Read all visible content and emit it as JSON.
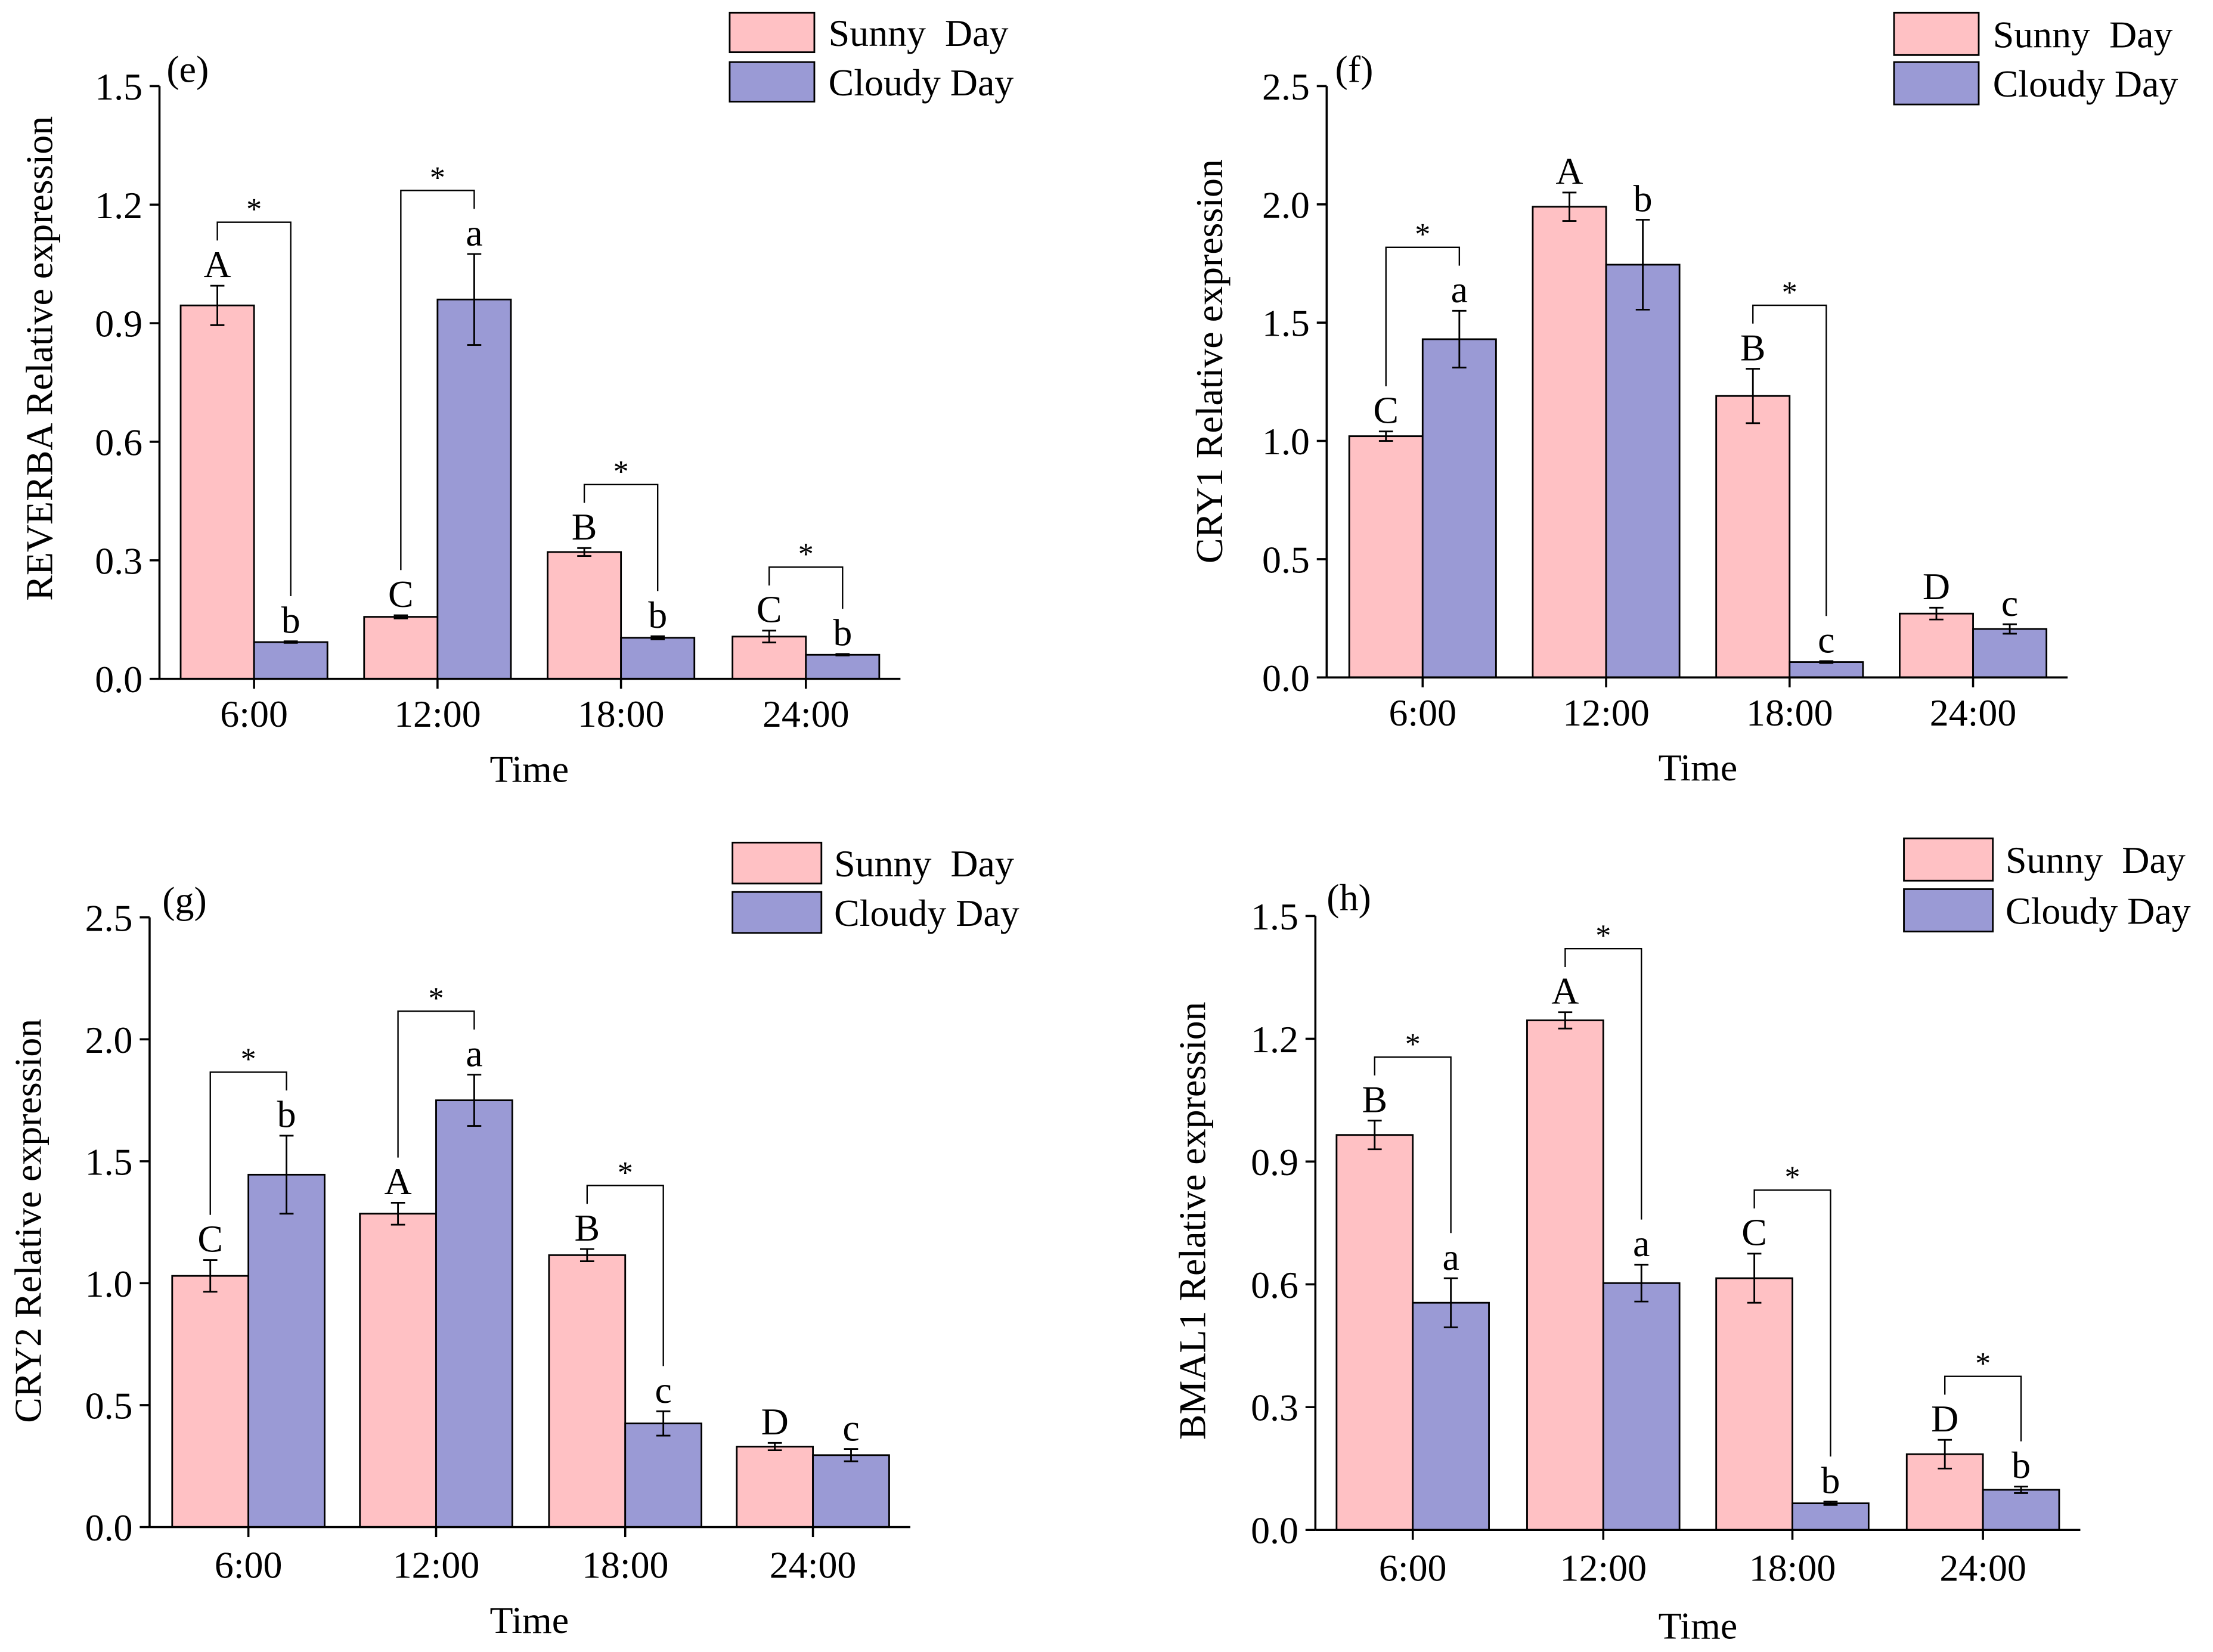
{
  "chart_data": [
    {
      "type": "bar",
      "panel_label": "(e)",
      "xlabel": "Time",
      "ylabel": "REVERBA Relative expression",
      "categories": [
        "6:00",
        "12:00",
        "18:00",
        "24:00"
      ],
      "ylim": [
        0,
        1.5
      ],
      "yticks": [
        "0.0",
        "0.3",
        "0.6",
        "0.9",
        "1.2",
        "1.5"
      ],
      "legend_position": "top-right",
      "series": [
        {
          "name": "Sunny  Day",
          "color": "#FFC1C4",
          "values": [
            0.945,
            0.157,
            0.321,
            0.107
          ],
          "errors": [
            0.05,
            0.004,
            0.01,
            0.015
          ],
          "letters": [
            "A",
            "C",
            "B",
            "C"
          ]
        },
        {
          "name": "Cloudy Day",
          "color": "#9A9AD5",
          "values": [
            0.093,
            0.96,
            0.104,
            0.061
          ],
          "errors": [
            0.002,
            0.115,
            0.004,
            0.002
          ],
          "letters": [
            "b",
            "a",
            "b",
            "b"
          ]
        }
      ],
      "significance": {
        "label": "*",
        "significant": [
          true,
          true,
          true,
          true
        ]
      }
    },
    {
      "type": "bar",
      "panel_label": "(f)",
      "xlabel": "Time",
      "ylabel": "CRY1 Relative expression",
      "categories": [
        "6:00",
        "12:00",
        "18:00",
        "24:00"
      ],
      "ylim": [
        0,
        2.5
      ],
      "yticks": [
        "0.0",
        "0.5",
        "1.0",
        "1.5",
        "2.0",
        "2.5"
      ],
      "legend_position": "top-right",
      "series": [
        {
          "name": "Sunny  Day",
          "color": "#FFC1C4",
          "values": [
            1.02,
            1.99,
            1.19,
            0.27
          ],
          "errors": [
            0.02,
            0.06,
            0.115,
            0.025
          ],
          "letters": [
            "C",
            "A",
            "B",
            "D"
          ]
        },
        {
          "name": "Cloudy Day",
          "color": "#9A9AD5",
          "values": [
            1.43,
            1.745,
            0.065,
            0.205
          ],
          "errors": [
            0.12,
            0.19,
            0.004,
            0.02
          ],
          "letters": [
            "a",
            "b",
            "c",
            "c"
          ]
        }
      ],
      "significance": {
        "label": "*",
        "significant": [
          true,
          false,
          true,
          false
        ]
      }
    },
    {
      "type": "bar",
      "panel_label": "(g)",
      "xlabel": "Time",
      "ylabel": "CRY2 Relative expression",
      "categories": [
        "6:00",
        "12:00",
        "18:00",
        "24:00"
      ],
      "ylim": [
        0,
        2.5
      ],
      "yticks": [
        "0.0",
        "0.5",
        "1.0",
        "1.5",
        "2.0",
        "2.5"
      ],
      "legend_position": "top-right",
      "series": [
        {
          "name": "Sunny  Day",
          "color": "#FFC1C4",
          "values": [
            1.03,
            1.285,
            1.115,
            0.33
          ],
          "errors": [
            0.065,
            0.045,
            0.025,
            0.015
          ],
          "letters": [
            "C",
            "A",
            "B",
            "D"
          ]
        },
        {
          "name": "Cloudy Day",
          "color": "#9A9AD5",
          "values": [
            1.445,
            1.75,
            0.425,
            0.295
          ],
          "errors": [
            0.16,
            0.105,
            0.05,
            0.025
          ],
          "letters": [
            "b",
            "a",
            "c",
            "c"
          ]
        }
      ],
      "significance": {
        "label": "*",
        "significant": [
          true,
          true,
          true,
          false
        ]
      }
    },
    {
      "type": "bar",
      "panel_label": "(h)",
      "xlabel": "Time",
      "ylabel": "BMAL1 Relative expression",
      "categories": [
        "6:00",
        "12:00",
        "18:00",
        "24:00"
      ],
      "ylim": [
        0,
        1.5
      ],
      "yticks": [
        "0.0",
        "0.3",
        "0.6",
        "0.9",
        "1.2",
        "1.5"
      ],
      "legend_position": "top-right",
      "series": [
        {
          "name": "Sunny  Day",
          "color": "#FFC1C4",
          "values": [
            0.965,
            1.245,
            0.615,
            0.185
          ],
          "errors": [
            0.035,
            0.02,
            0.06,
            0.035
          ],
          "letters": [
            "B",
            "A",
            "C",
            "D"
          ]
        },
        {
          "name": "Cloudy Day",
          "color": "#9A9AD5",
          "values": [
            0.555,
            0.603,
            0.065,
            0.098
          ],
          "errors": [
            0.06,
            0.045,
            0.004,
            0.008
          ],
          "letters": [
            "a",
            "a",
            "b",
            "b"
          ]
        }
      ],
      "significance": {
        "label": "*",
        "significant": [
          true,
          true,
          true,
          true
        ]
      }
    }
  ]
}
